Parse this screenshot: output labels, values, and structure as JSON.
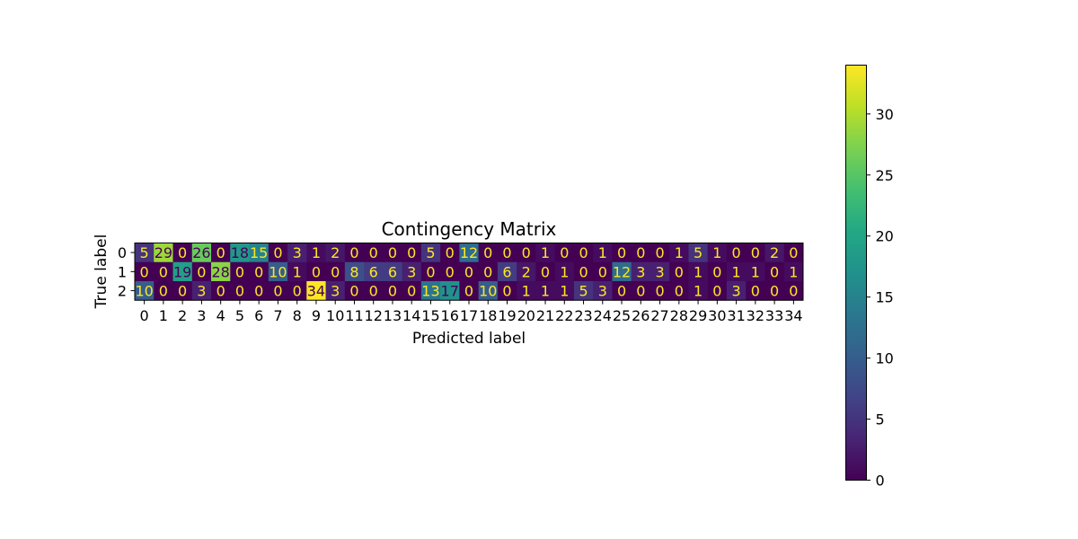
{
  "chart_data": {
    "type": "heatmap",
    "title": "Contingency Matrix",
    "xlabel": "Predicted label",
    "ylabel": "True label",
    "x_categories": [
      "0",
      "1",
      "2",
      "3",
      "4",
      "5",
      "6",
      "7",
      "8",
      "9",
      "10",
      "11",
      "12",
      "13",
      "14",
      "15",
      "16",
      "17",
      "18",
      "19",
      "20",
      "21",
      "22",
      "23",
      "24",
      "25",
      "26",
      "27",
      "28",
      "29",
      "30",
      "31",
      "32",
      "33",
      "34"
    ],
    "y_categories": [
      "0",
      "1",
      "2"
    ],
    "values": [
      [
        5,
        29,
        0,
        26,
        0,
        18,
        15,
        0,
        3,
        1,
        2,
        0,
        0,
        0,
        0,
        5,
        0,
        12,
        0,
        0,
        0,
        1,
        0,
        0,
        1,
        0,
        0,
        0,
        1,
        5,
        1,
        0,
        0,
        2,
        0
      ],
      [
        0,
        0,
        19,
        0,
        28,
        0,
        0,
        10,
        1,
        0,
        0,
        8,
        6,
        6,
        3,
        0,
        0,
        0,
        0,
        6,
        2,
        0,
        1,
        0,
        0,
        12,
        3,
        3,
        0,
        1,
        0,
        1,
        1,
        0,
        1
      ],
      [
        10,
        0,
        0,
        3,
        0,
        0,
        0,
        0,
        0,
        34,
        3,
        0,
        0,
        0,
        0,
        13,
        17,
        0,
        10,
        0,
        1,
        1,
        1,
        5,
        3,
        0,
        0,
        0,
        0,
        1,
        0,
        3,
        0,
        0,
        0
      ]
    ],
    "colormap": "viridis",
    "colorbar": {
      "min": 0,
      "max": 34,
      "ticks": [
        0,
        5,
        10,
        15,
        20,
        25,
        30
      ]
    },
    "annotation_colors": {
      "on_dark": "#fde725",
      "on_light": "#440154"
    }
  }
}
